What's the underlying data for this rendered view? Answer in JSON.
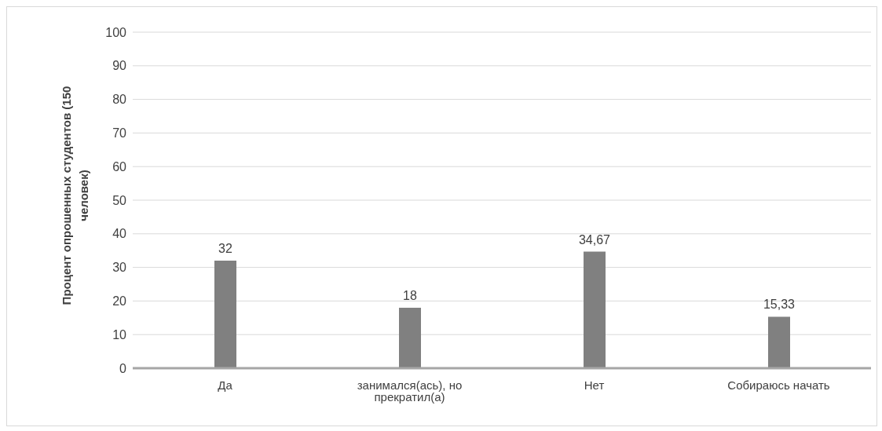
{
  "chart_data": {
    "type": "bar",
    "ylabel": "Процент опрошенных студентов (150 человек)",
    "categories": [
      "Да",
      "занимался(ась), но прекратил(а)",
      "Нет",
      "Собираюсь начать"
    ],
    "values": [
      32,
      18,
      34.67,
      15.33
    ],
    "value_labels": [
      "32",
      "18",
      "34,67",
      "15,33"
    ],
    "color": "#808080",
    "ylim": [
      0,
      100
    ],
    "yticks": [
      0,
      10,
      20,
      30,
      40,
      50,
      60,
      70,
      80,
      90,
      100
    ],
    "grid": "y",
    "legend": false
  }
}
